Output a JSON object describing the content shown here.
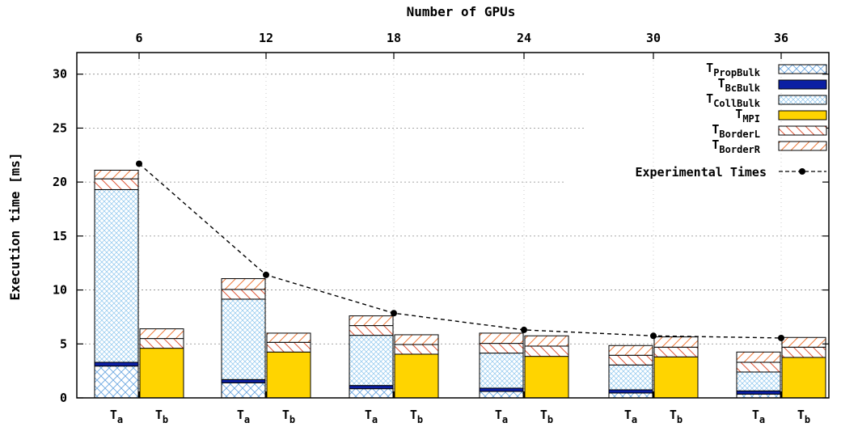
{
  "chart_data": {
    "type": "bar",
    "stacked": true,
    "title": "Number of GPUs",
    "ylabel": "Execution time [ms]",
    "ylim": [
      0,
      32
    ],
    "yticks": [
      0,
      5,
      10,
      15,
      20,
      25,
      30
    ],
    "grid": true,
    "legend_position": "top-right",
    "x_top_label": "Number of GPUs",
    "gpu_counts": [
      "6",
      "12",
      "18",
      "24",
      "30",
      "36"
    ],
    "bar_labels": [
      {
        "base": "T",
        "sub": "a"
      },
      {
        "base": "T",
        "sub": "b"
      }
    ],
    "legend": [
      {
        "key": "propbulk",
        "base": "T",
        "sub": "PropBulk"
      },
      {
        "key": "bcbulk",
        "base": "T",
        "sub": "BcBulk"
      },
      {
        "key": "collbulk",
        "base": "T",
        "sub": "CollBulk"
      },
      {
        "key": "mpi",
        "base": "T",
        "sub": "MPI"
      },
      {
        "key": "borderl",
        "base": "T",
        "sub": "BorderL"
      },
      {
        "key": "borderr",
        "base": "T",
        "sub": "BorderR"
      },
      {
        "key": "experimental",
        "label": "Experimental Times"
      }
    ],
    "Ta": {
      "propbulk": [
        2.95,
        1.4,
        0.85,
        0.6,
        0.45,
        0.35
      ],
      "bcbulk": [
        0.35,
        0.3,
        0.3,
        0.3,
        0.3,
        0.3
      ],
      "collbulk": [
        16.0,
        7.45,
        4.65,
        3.25,
        2.3,
        1.75
      ],
      "borderl": [
        1.0,
        0.9,
        0.9,
        0.9,
        0.9,
        0.9
      ],
      "borderr": [
        0.8,
        1.0,
        0.9,
        0.95,
        0.9,
        0.95
      ]
    },
    "Tb": {
      "mpi": [
        4.6,
        4.25,
        4.05,
        3.85,
        3.8,
        3.75
      ],
      "borderl": [
        0.9,
        0.9,
        0.9,
        0.95,
        0.9,
        0.95
      ],
      "borderr": [
        0.9,
        0.85,
        0.9,
        0.95,
        0.95,
        0.9
      ]
    },
    "experimental_times": [
      21.7,
      11.4,
      7.85,
      6.3,
      5.75,
      5.55
    ],
    "colors": {
      "propbulk": "#6aa6e0",
      "bcbulk": "#0b1fa3",
      "collbulk": "#8cc6ee",
      "mpi": "#ffd400",
      "borderl": "#e0583a",
      "borderr": "#ee7a3a",
      "experimental": "#000000"
    }
  }
}
